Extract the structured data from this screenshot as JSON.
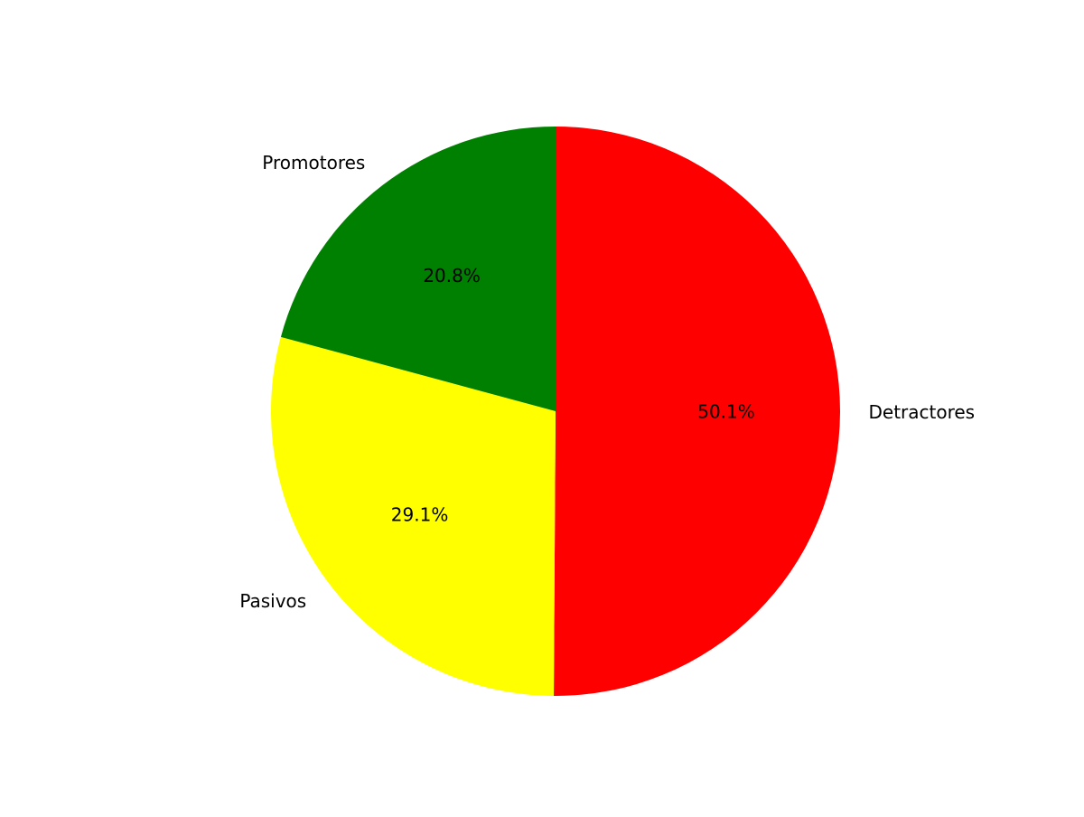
{
  "chart_data": {
    "type": "pie",
    "title": "",
    "start_angle_deg": 90,
    "direction": "clockwise",
    "slices": [
      {
        "label": "Detractores",
        "value": 50.1,
        "pct_label": "50.1%",
        "color": "#ff0000"
      },
      {
        "label": "Pasivos",
        "value": 29.1,
        "pct_label": "29.1%",
        "color": "#ffff00"
      },
      {
        "label": "Promotores",
        "value": 20.8,
        "pct_label": "20.8%",
        "color": "#008000"
      }
    ],
    "legend": "none"
  }
}
